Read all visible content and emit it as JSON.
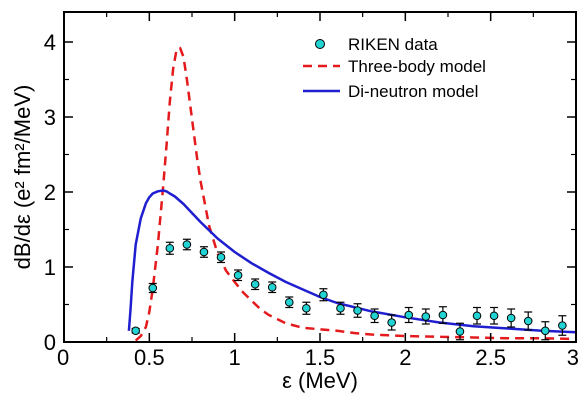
{
  "chart_data": {
    "type": "line",
    "xlabel": "ε  (MeV)",
    "ylabel": "dB/dε (e² fm²/MeV)",
    "xlim": [
      0,
      3
    ],
    "ylim": [
      0,
      4.4
    ],
    "x_ticks": [
      0,
      0.5,
      1,
      1.5,
      2,
      2.5,
      3
    ],
    "x_tick_labels": [
      "0",
      "0.5",
      "1",
      "1.5",
      "2",
      "2.5",
      "3"
    ],
    "y_ticks": [
      0,
      1,
      2,
      3,
      4
    ],
    "y_tick_labels": [
      "0",
      "1",
      "2",
      "3",
      "4"
    ],
    "grid": false,
    "legend_position": "top-right",
    "legend": [
      "RIKEN data",
      "Three-body model",
      "Di-neutron model"
    ],
    "colors": {
      "data_fill": "#22d3d3",
      "three_body": "#e41a1c",
      "di_neutron": "#1f1fd0",
      "axes": "#000000"
    },
    "series": [
      {
        "name": "RIKEN data",
        "kind": "scatter",
        "x": [
          0.42,
          0.52,
          0.62,
          0.72,
          0.82,
          0.92,
          1.02,
          1.12,
          1.22,
          1.32,
          1.42,
          1.52,
          1.62,
          1.72,
          1.82,
          1.92,
          2.02,
          2.12,
          2.22,
          2.32,
          2.42,
          2.52,
          2.62,
          2.72,
          2.82,
          2.92
        ],
        "y": [
          0.15,
          0.72,
          1.25,
          1.3,
          1.2,
          1.13,
          0.89,
          0.77,
          0.73,
          0.53,
          0.45,
          0.63,
          0.45,
          0.42,
          0.35,
          0.26,
          0.36,
          0.34,
          0.36,
          0.14,
          0.35,
          0.35,
          0.32,
          0.28,
          0.15,
          0.22
        ],
        "yerr": [
          0.03,
          0.06,
          0.08,
          0.07,
          0.07,
          0.07,
          0.07,
          0.07,
          0.07,
          0.07,
          0.08,
          0.08,
          0.08,
          0.09,
          0.09,
          0.1,
          0.1,
          0.1,
          0.11,
          0.11,
          0.11,
          0.11,
          0.12,
          0.12,
          0.12,
          0.13
        ]
      },
      {
        "name": "Three-body model",
        "kind": "line",
        "style": "dashed",
        "x": [
          0.42,
          0.45,
          0.48,
          0.5,
          0.52,
          0.55,
          0.58,
          0.6,
          0.62,
          0.64,
          0.66,
          0.68,
          0.7,
          0.72,
          0.74,
          0.76,
          0.78,
          0.8,
          0.85,
          0.9,
          0.95,
          1.0,
          1.05,
          1.1,
          1.15,
          1.2,
          1.3,
          1.4,
          1.5,
          1.6,
          1.7,
          1.8,
          1.9,
          2.0,
          2.2,
          2.4,
          2.6,
          2.8,
          3.0
        ],
        "y": [
          0.02,
          0.08,
          0.2,
          0.4,
          0.7,
          1.3,
          2.05,
          2.6,
          3.2,
          3.65,
          3.9,
          3.92,
          3.8,
          3.5,
          3.15,
          2.8,
          2.45,
          2.15,
          1.55,
          1.18,
          0.95,
          0.8,
          0.66,
          0.55,
          0.44,
          0.36,
          0.25,
          0.19,
          0.17,
          0.15,
          0.12,
          0.1,
          0.09,
          0.08,
          0.07,
          0.06,
          0.05,
          0.05,
          0.04
        ]
      },
      {
        "name": "Di-neutron model",
        "kind": "line",
        "style": "solid",
        "x": [
          0.38,
          0.39,
          0.4,
          0.42,
          0.45,
          0.48,
          0.5,
          0.52,
          0.55,
          0.58,
          0.6,
          0.62,
          0.65,
          0.7,
          0.75,
          0.8,
          0.9,
          1.0,
          1.1,
          1.2,
          1.3,
          1.4,
          1.5,
          1.6,
          1.8,
          2.0,
          2.2,
          2.4,
          2.6,
          2.8,
          3.0
        ],
        "y": [
          0.15,
          0.45,
          0.8,
          1.3,
          1.65,
          1.85,
          1.93,
          1.98,
          2.01,
          2.02,
          2.01,
          1.98,
          1.94,
          1.84,
          1.72,
          1.6,
          1.38,
          1.2,
          1.05,
          0.92,
          0.8,
          0.7,
          0.6,
          0.52,
          0.41,
          0.33,
          0.26,
          0.21,
          0.18,
          0.15,
          0.13
        ]
      }
    ]
  }
}
